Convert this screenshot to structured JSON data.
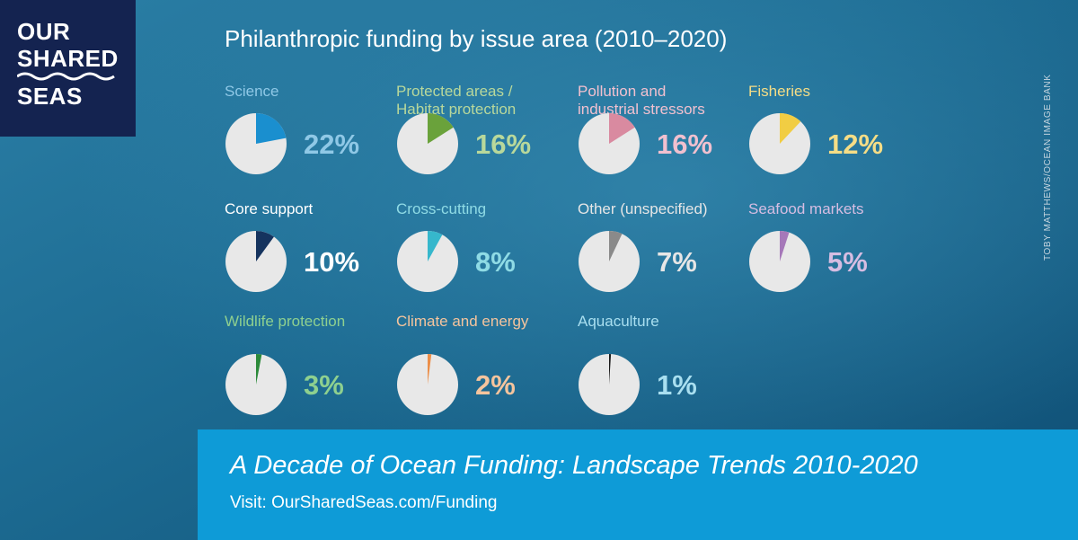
{
  "logo": {
    "lines": [
      "OUR",
      "SHARED",
      "SEAS"
    ]
  },
  "photo_credit": "TOBY MATTHEWS/OCEAN IMAGE BANK",
  "banner": {
    "title": "A Decade of Ocean Funding: Landscape Trends 2010-2020",
    "link": "Visit: OurSharedSeas.com/Funding"
  },
  "colors": {
    "background": "#1b6286",
    "logo_bg": "#142350",
    "banner_bg": "#0e9bd7",
    "pie_rest": "#e8e8e8"
  },
  "chart_data": {
    "type": "pie",
    "title": "Philanthropic funding by issue area (2010–2020)",
    "unit": "%",
    "categories": [
      {
        "label": "Science",
        "value": 22,
        "color": "#1a8fcf",
        "label_color": "#8fc8e6"
      },
      {
        "label": "Protected areas / Habitat protection",
        "value": 16,
        "color": "#6aa23b",
        "label_color": "#b8d89b"
      },
      {
        "label": "Pollution and industrial stressors",
        "value": 16,
        "color": "#d98aa0",
        "label_color": "#f1c0cf"
      },
      {
        "label": "Fisheries",
        "value": 12,
        "color": "#f1cd43",
        "label_color": "#f5dd86"
      },
      {
        "label": "Core support",
        "value": 10,
        "color": "#15335e",
        "label_color": "#ffffff"
      },
      {
        "label": "Cross-cutting",
        "value": 8,
        "color": "#36b7cc",
        "label_color": "#8fdbe5"
      },
      {
        "label": "Other (unspecified)",
        "value": 7,
        "color": "#8a8a8a",
        "label_color": "#e6e6e6"
      },
      {
        "label": "Seafood markets",
        "value": 5,
        "color": "#a678b9",
        "label_color": "#d6bde2"
      },
      {
        "label": "Wildlife protection",
        "value": 3,
        "color": "#2c8a3a",
        "label_color": "#8ed08f"
      },
      {
        "label": "Climate and energy",
        "value": 2,
        "color": "#ec8e48",
        "label_color": "#f5c49d"
      },
      {
        "label": "Aquaculture",
        "value": 1,
        "color": "#1a1a1a",
        "label_color": "#a9dff0"
      }
    ]
  }
}
